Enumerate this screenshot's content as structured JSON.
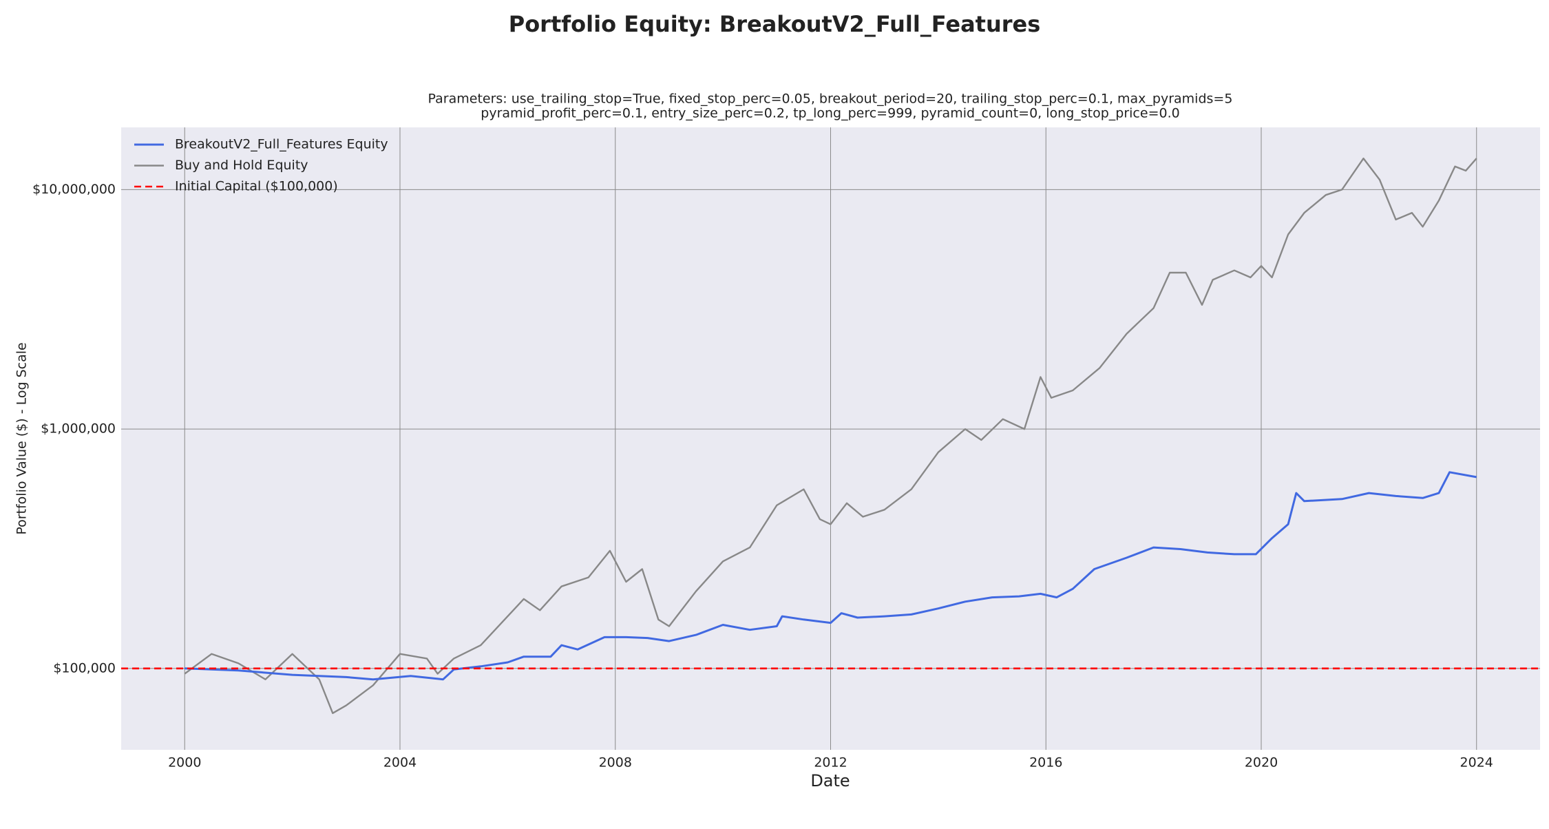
{
  "chart_data": {
    "type": "line",
    "title": "Portfolio Equity: BreakoutV2_Full_Features",
    "subtitle": [
      "Parameters: use_trailing_stop=True, fixed_stop_perc=0.05, breakout_period=20, trailing_stop_perc=0.1, max_pyramids=5",
      "pyramid_profit_perc=0.1, entry_size_perc=0.2, tp_long_perc=999, pyramid_count=0, long_stop_price=0.0"
    ],
    "xlabel": "Date",
    "ylabel": "Portfolio Value ($) - Log Scale",
    "log_y": true,
    "grid": true,
    "legend": "upper left",
    "xlim": [
      1998.82,
      2025.18
    ],
    "xticks": [
      2000,
      2004,
      2008,
      2012,
      2016,
      2020,
      2024
    ],
    "ylim": [
      45700,
      18200000
    ],
    "yticks": [
      {
        "value": 100000,
        "label": "$100,000"
      },
      {
        "value": 1000000,
        "label": "$1,000,000"
      },
      {
        "value": 10000000,
        "label": "$10,000,000"
      }
    ],
    "series": [
      {
        "name": "BreakoutV2_Full_Features Equity",
        "color": "#4169e1",
        "width": 3,
        "x": [
          2000.0,
          2001.0,
          2002.0,
          2003.0,
          2003.5,
          2004.2,
          2004.8,
          2005.0,
          2005.5,
          2006.0,
          2006.3,
          2006.8,
          2007.0,
          2007.3,
          2007.8,
          2008.2,
          2008.6,
          2009.0,
          2009.5,
          2010.0,
          2010.5,
          2011.0,
          2011.1,
          2011.5,
          2012.0,
          2012.2,
          2012.5,
          2013.0,
          2013.5,
          2014.0,
          2014.5,
          2015.0,
          2015.5,
          2015.9,
          2016.2,
          2016.5,
          2016.9,
          2017.5,
          2018.0,
          2018.5,
          2019.0,
          2019.5,
          2019.9,
          2020.2,
          2020.5,
          2020.65,
          2020.8,
          2021.5,
          2022.0,
          2022.5,
          2023.0,
          2023.3,
          2023.5,
          2024.0
        ],
        "values": [
          100000,
          98000,
          94000,
          92000,
          90000,
          93000,
          90000,
          99000,
          102000,
          106000,
          112000,
          112000,
          125000,
          120000,
          135000,
          135000,
          134000,
          130000,
          138000,
          152000,
          145000,
          150000,
          165000,
          160000,
          155000,
          170000,
          163000,
          165000,
          168000,
          178000,
          190000,
          198000,
          200000,
          205000,
          198000,
          215000,
          260000,
          290000,
          320000,
          315000,
          305000,
          300000,
          300000,
          350000,
          400000,
          540000,
          500000,
          510000,
          540000,
          525000,
          515000,
          540000,
          660000,
          630000
        ]
      },
      {
        "name": "Buy and Hold Equity",
        "color": "#888888",
        "width": 2.4,
        "x": [
          2000.0,
          2000.5,
          2001.0,
          2001.5,
          2002.0,
          2002.5,
          2002.75,
          2003.0,
          2003.5,
          2004.0,
          2004.5,
          2004.7,
          2005.0,
          2005.5,
          2006.0,
          2006.3,
          2006.6,
          2007.0,
          2007.5,
          2007.9,
          2008.2,
          2008.5,
          2008.8,
          2009.0,
          2009.5,
          2010.0,
          2010.5,
          2011.0,
          2011.5,
          2011.8,
          2012.0,
          2012.3,
          2012.6,
          2013.0,
          2013.5,
          2014.0,
          2014.5,
          2014.8,
          2015.2,
          2015.6,
          2015.9,
          2016.1,
          2016.5,
          2017.0,
          2017.5,
          2018.0,
          2018.3,
          2018.6,
          2018.9,
          2019.1,
          2019.5,
          2019.8,
          2020.0,
          2020.2,
          2020.5,
          2020.8,
          2021.2,
          2021.5,
          2021.9,
          2022.2,
          2022.5,
          2022.8,
          2023.0,
          2023.3,
          2023.6,
          2023.8,
          2024.0
        ],
        "values": [
          95000,
          115000,
          105000,
          90000,
          115000,
          90000,
          65000,
          70000,
          85000,
          115000,
          110000,
          95000,
          110000,
          125000,
          165000,
          195000,
          175000,
          220000,
          240000,
          310000,
          230000,
          260000,
          160000,
          150000,
          210000,
          280000,
          320000,
          480000,
          560000,
          420000,
          400000,
          490000,
          430000,
          460000,
          560000,
          800000,
          1000000,
          900000,
          1100000,
          1000000,
          1650000,
          1350000,
          1450000,
          1800000,
          2500000,
          3200000,
          4500000,
          4500000,
          3300000,
          4200000,
          4600000,
          4300000,
          4800000,
          4300000,
          6500000,
          8000000,
          9500000,
          10000000,
          13500000,
          11000000,
          7500000,
          8000000,
          7000000,
          9000000,
          12500000,
          12000000,
          13500000
        ]
      }
    ],
    "reference_line": {
      "name": "Initial Capital ($100,000)",
      "color": "#ff0000",
      "value": 100000
    }
  }
}
